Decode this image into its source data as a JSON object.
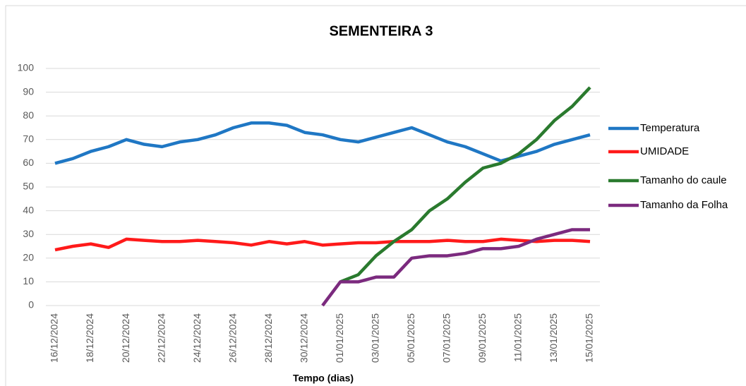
{
  "chart_data": {
    "type": "line",
    "title": "SEMENTEIRA 3",
    "x_label": "Tempo (dias)",
    "categories": [
      "16/12/2024",
      null,
      "18/12/2024",
      null,
      "20/12/2024",
      null,
      "22/12/2024",
      null,
      "24/12/2024",
      null,
      "26/12/2024",
      null,
      "28/12/2024",
      null,
      "30/12/2024",
      null,
      "01/01/2025",
      null,
      "03/01/2025",
      null,
      "05/01/2025",
      null,
      "07/01/2025",
      null,
      "09/01/2025",
      null,
      "11/01/2025",
      null,
      "13/01/2025",
      null,
      "15/01/2025"
    ],
    "series": [
      {
        "name": "Temperatura",
        "color": "#1f77c4",
        "values": [
          60,
          62,
          65,
          67,
          70,
          68,
          67,
          69,
          70,
          72,
          75,
          77,
          77,
          76,
          73,
          72,
          70,
          69,
          71,
          73,
          75,
          72,
          69,
          67,
          64,
          61,
          63,
          65,
          68,
          70,
          72
        ]
      },
      {
        "name": "UMIDADE",
        "color": "#ff1a1a",
        "values": [
          23.5,
          25,
          26,
          24.5,
          28,
          27.5,
          27,
          27,
          27.5,
          27,
          26.5,
          25.5,
          27,
          26,
          27,
          25.5,
          26,
          26.5,
          26.5,
          27,
          27,
          27,
          27.5,
          27,
          27,
          28,
          27.5,
          27,
          27.5,
          27.5,
          27
        ]
      },
      {
        "name": "Tamanho do caule",
        "color": "#2a7a2e",
        "values": [
          null,
          null,
          null,
          null,
          null,
          null,
          null,
          null,
          null,
          null,
          null,
          null,
          null,
          null,
          null,
          null,
          10,
          13,
          21,
          27,
          32,
          40,
          45,
          52,
          58,
          60,
          64,
          70,
          78,
          84,
          92
        ]
      },
      {
        "name": "Tamanho da Folha",
        "color": "#7b2a7e",
        "values": [
          null,
          null,
          null,
          null,
          null,
          null,
          null,
          null,
          null,
          null,
          null,
          null,
          null,
          null,
          null,
          0,
          10,
          10,
          12,
          12,
          20,
          21,
          21,
          22,
          24,
          24,
          25,
          28,
          30,
          32,
          32
        ]
      }
    ],
    "ylim": [
      0,
      100
    ],
    "yticks": [
      0,
      10,
      20,
      30,
      40,
      50,
      60,
      70,
      80,
      90,
      100
    ],
    "grid": true,
    "legend": "right"
  }
}
